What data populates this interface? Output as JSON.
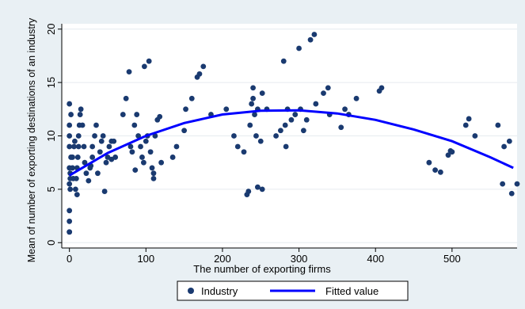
{
  "chart_data": {
    "type": "scatter",
    "xlabel": "The number of exporting firms",
    "ylabel": "Mean of number of exporting destinations of an industry",
    "xlim": [
      -10,
      585
    ],
    "ylim": [
      -0.5,
      20.5
    ],
    "x_ticks": [
      0,
      100,
      200,
      300,
      400,
      500
    ],
    "y_ticks": [
      0,
      5,
      10,
      15,
      20
    ],
    "grid": "horizontal",
    "legend_position": "bottom",
    "colors": {
      "points": "#1a3a70",
      "fit": "#0000ff",
      "plot_bg": "#ffffff",
      "outer_bg": "#e9f0f4",
      "grid": "#e6ebef"
    },
    "series": [
      {
        "name": "Industry",
        "type": "scatter",
        "points": [
          [
            0,
            1
          ],
          [
            0,
            1
          ],
          [
            0,
            2
          ],
          [
            0,
            3
          ],
          [
            1,
            5
          ],
          [
            0,
            5.5
          ],
          [
            1,
            6
          ],
          [
            1,
            6.5
          ],
          [
            0,
            7
          ],
          [
            2,
            8
          ],
          [
            0,
            9
          ],
          [
            0,
            10
          ],
          [
            0,
            11
          ],
          [
            0,
            13
          ],
          [
            2,
            12
          ],
          [
            4,
            7
          ],
          [
            5,
            6
          ],
          [
            4,
            8
          ],
          [
            6,
            9
          ],
          [
            7,
            9.5
          ],
          [
            8,
            5
          ],
          [
            10,
            4.5
          ],
          [
            9,
            6
          ],
          [
            10,
            7
          ],
          [
            11,
            8
          ],
          [
            12,
            9
          ],
          [
            12,
            10
          ],
          [
            13,
            11
          ],
          [
            14,
            12
          ],
          [
            15,
            12.5
          ],
          [
            17,
            11
          ],
          [
            19,
            9
          ],
          [
            20,
            7.5
          ],
          [
            22,
            6.5
          ],
          [
            25,
            5.8
          ],
          [
            27,
            7
          ],
          [
            28,
            7.2
          ],
          [
            30,
            8
          ],
          [
            30,
            9
          ],
          [
            33,
            10
          ],
          [
            35,
            11
          ],
          [
            37,
            6.5
          ],
          [
            40,
            8.5
          ],
          [
            42,
            9.5
          ],
          [
            44,
            10
          ],
          [
            46,
            4.8
          ],
          [
            48,
            7.5
          ],
          [
            50,
            8
          ],
          [
            52,
            9
          ],
          [
            55,
            9.5
          ],
          [
            55,
            7.8
          ],
          [
            58,
            9.5
          ],
          [
            60,
            8
          ],
          [
            70,
            12
          ],
          [
            74,
            13.5
          ],
          [
            78,
            16
          ],
          [
            80,
            9
          ],
          [
            82,
            8.5
          ],
          [
            85,
            11
          ],
          [
            86,
            6.8
          ],
          [
            88,
            12
          ],
          [
            90,
            10
          ],
          [
            93,
            9
          ],
          [
            95,
            8
          ],
          [
            97,
            7.5
          ],
          [
            98,
            16.5
          ],
          [
            100,
            9.5
          ],
          [
            102,
            10
          ],
          [
            104,
            17
          ],
          [
            106,
            8.5
          ],
          [
            108,
            7
          ],
          [
            110,
            6
          ],
          [
            110,
            6.5
          ],
          [
            112,
            10
          ],
          [
            115,
            11.5
          ],
          [
            118,
            11.8
          ],
          [
            120,
            7.5
          ],
          [
            135,
            8
          ],
          [
            140,
            9
          ],
          [
            150,
            10.5
          ],
          [
            152,
            12.5
          ],
          [
            160,
            13.5
          ],
          [
            167,
            15.5
          ],
          [
            170,
            15.8
          ],
          [
            175,
            16.5
          ],
          [
            185,
            12
          ],
          [
            205,
            12.5
          ],
          [
            215,
            10
          ],
          [
            220,
            9
          ],
          [
            228,
            8.5
          ],
          [
            232,
            4.5
          ],
          [
            234,
            4.8
          ],
          [
            236,
            11
          ],
          [
            238,
            13
          ],
          [
            240,
            14.5
          ],
          [
            240,
            13.5
          ],
          [
            242,
            12
          ],
          [
            244,
            10
          ],
          [
            246,
            5.2
          ],
          [
            246,
            12.5
          ],
          [
            250,
            9.5
          ],
          [
            252,
            5
          ],
          [
            252,
            14
          ],
          [
            258,
            12.5
          ],
          [
            270,
            10
          ],
          [
            276,
            10.5
          ],
          [
            280,
            17
          ],
          [
            282,
            11
          ],
          [
            283,
            9
          ],
          [
            285,
            12.5
          ],
          [
            290,
            11.5
          ],
          [
            295,
            12
          ],
          [
            300,
            18.2
          ],
          [
            302,
            12.5
          ],
          [
            306,
            10.5
          ],
          [
            310,
            11.5
          ],
          [
            315,
            19
          ],
          [
            320,
            19.5
          ],
          [
            322,
            13
          ],
          [
            332,
            14
          ],
          [
            338,
            14.5
          ],
          [
            340,
            12
          ],
          [
            355,
            10.8
          ],
          [
            360,
            12.5
          ],
          [
            365,
            12
          ],
          [
            375,
            13.5
          ],
          [
            405,
            14.2
          ],
          [
            408,
            14.5
          ],
          [
            470,
            7.5
          ],
          [
            478,
            6.8
          ],
          [
            485,
            6.6
          ],
          [
            495,
            8.2
          ],
          [
            498,
            8.6
          ],
          [
            500,
            8.5
          ],
          [
            518,
            11
          ],
          [
            522,
            11.6
          ],
          [
            530,
            10
          ],
          [
            560,
            11
          ],
          [
            566,
            5.5
          ],
          [
            568,
            9
          ],
          [
            575,
            9.5
          ],
          [
            578,
            4.6
          ],
          [
            585,
            5.5
          ]
        ]
      },
      {
        "name": "Fitted value",
        "type": "line",
        "x": [
          0,
          50,
          100,
          150,
          200,
          250,
          300,
          350,
          400,
          450,
          500,
          550,
          580
        ],
        "y": [
          6.3,
          8.4,
          10.0,
          11.2,
          12.0,
          12.35,
          12.4,
          12.1,
          11.5,
          10.6,
          9.5,
          8.0,
          7.0
        ]
      }
    ]
  }
}
